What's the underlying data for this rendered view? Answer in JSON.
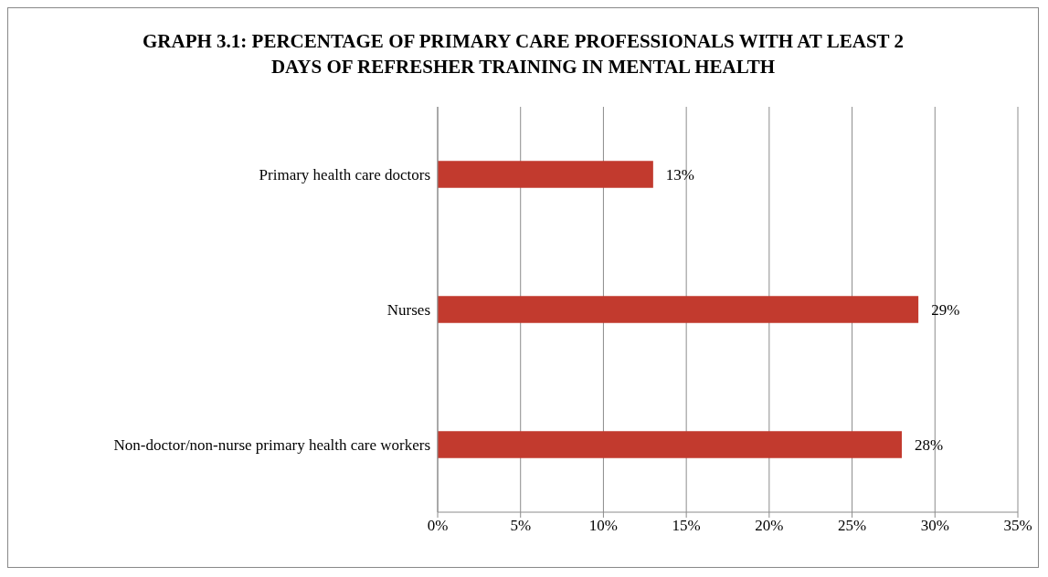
{
  "chart_data": {
    "type": "bar",
    "orientation": "horizontal",
    "title": "GRAPH 3.1: PERCENTAGE OF PRIMARY CARE PROFESSIONALS WITH AT LEAST 2 DAYS OF REFRESHER TRAINING IN MENTAL HEALTH",
    "categories": [
      "Primary health care doctors",
      "Nurses",
      "Non-doctor/non-nurse primary health care workers"
    ],
    "values": [
      13,
      29,
      28
    ],
    "value_labels": [
      "13%",
      "29%",
      "28%"
    ],
    "color": "#c23a2e",
    "xlim": [
      0,
      35
    ],
    "xticks": [
      {
        "value": 0,
        "label": "0%"
      },
      {
        "value": 5,
        "label": "5%"
      },
      {
        "value": 10,
        "label": "10%"
      },
      {
        "value": 15,
        "label": "15%"
      },
      {
        "value": 20,
        "label": "20%"
      },
      {
        "value": 25,
        "label": "25%"
      },
      {
        "value": 30,
        "label": "30%"
      },
      {
        "value": 35,
        "label": "35%"
      }
    ],
    "grid": "x"
  }
}
